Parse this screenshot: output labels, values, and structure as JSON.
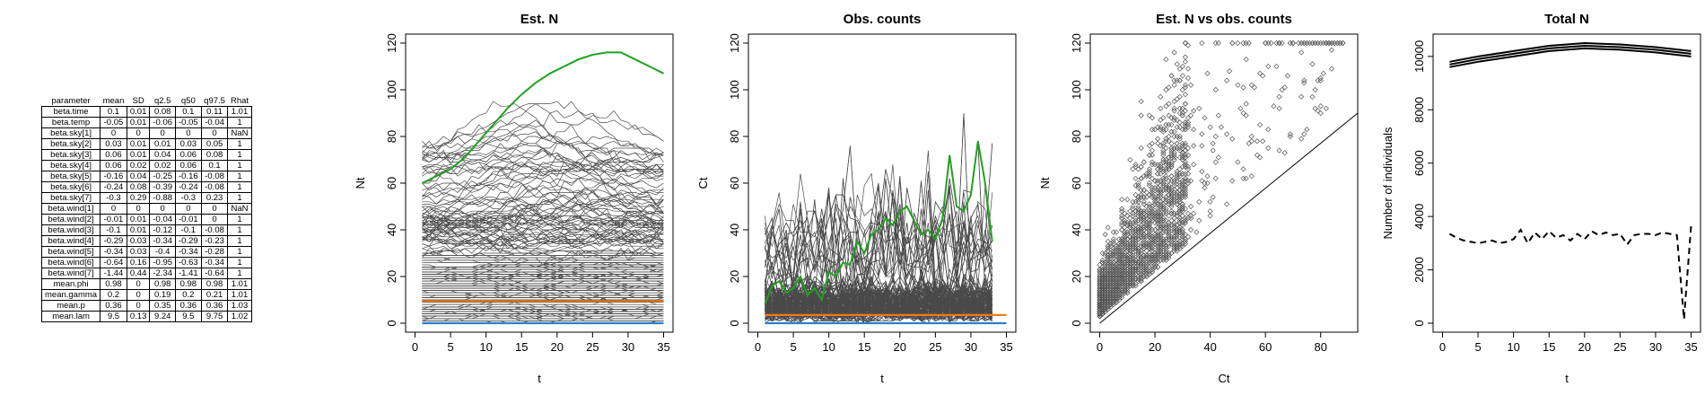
{
  "param_table": {
    "headers": [
      "parameter",
      "mean",
      "SD",
      "q2.5",
      "q50",
      "q97.5",
      "Rhat"
    ],
    "rows": [
      [
        "beta.time",
        "0.1",
        "0.01",
        "0.08",
        "0.1",
        "0.11",
        "1.01"
      ],
      [
        "beta.temp",
        "-0.05",
        "0.01",
        "-0.06",
        "-0.05",
        "-0.04",
        "1"
      ],
      [
        "beta.sky[1]",
        "0",
        "0",
        "0",
        "0",
        "0",
        "NaN"
      ],
      [
        "beta.sky[2]",
        "0.03",
        "0.01",
        "0.01",
        "0.03",
        "0.05",
        "1"
      ],
      [
        "beta.sky[3]",
        "0.06",
        "0.01",
        "0.04",
        "0.06",
        "0.08",
        "1"
      ],
      [
        "beta.sky[4]",
        "0.06",
        "0.02",
        "0.02",
        "0.06",
        "0.1",
        "1"
      ],
      [
        "beta.sky[5]",
        "-0.16",
        "0.04",
        "-0.25",
        "-0.16",
        "-0.08",
        "1"
      ],
      [
        "beta.sky[6]",
        "-0.24",
        "0.08",
        "-0.39",
        "-0.24",
        "-0.08",
        "1"
      ],
      [
        "beta.sky[7]",
        "-0.3",
        "0.29",
        "-0.88",
        "-0.3",
        "0.23",
        "1"
      ],
      [
        "beta.wind[1]",
        "0",
        "0",
        "0",
        "0",
        "0",
        "NaN"
      ],
      [
        "beta.wind[2]",
        "-0.01",
        "0.01",
        "-0.04",
        "-0.01",
        "0",
        "1"
      ],
      [
        "beta.wind[3]",
        "-0.1",
        "0.01",
        "-0.12",
        "-0.1",
        "-0.08",
        "1"
      ],
      [
        "beta.wind[4]",
        "-0.29",
        "0.03",
        "-0.34",
        "-0.29",
        "-0.23",
        "1"
      ],
      [
        "beta.wind[5]",
        "-0.34",
        "0.03",
        "-0.4",
        "-0.34",
        "-0.28",
        "1"
      ],
      [
        "beta.wind[6]",
        "-0.64",
        "0.16",
        "-0.95",
        "-0.63",
        "-0.34",
        "1"
      ],
      [
        "beta.wind[7]",
        "-1.44",
        "0.44",
        "-2.34",
        "-1.41",
        "-0.64",
        "1"
      ],
      [
        "mean.phi",
        "0.98",
        "0",
        "0.98",
        "0.98",
        "0.98",
        "1.01"
      ],
      [
        "mean.gamma",
        "0.2",
        "0",
        "0.19",
        "0.2",
        "0.21",
        "1.01"
      ],
      [
        "mean.p",
        "0.36",
        "0",
        "0.35",
        "0.36",
        "0.36",
        "1.03"
      ],
      [
        "mean.lam",
        "9.5",
        "0.13",
        "9.24",
        "9.5",
        "9.75",
        "1.02"
      ]
    ]
  },
  "colors": {
    "lines": "#4a4a4a",
    "highlight": "#22a022",
    "mean_line": "#f07a10",
    "zero_line": "#2a7fd0",
    "points": "#555555"
  },
  "chart_data": [
    {
      "type": "line",
      "title": "Est. N",
      "xlabel": "t",
      "ylabel": "Nt",
      "xlim": [
        0,
        35
      ],
      "ylim": [
        0,
        120
      ],
      "xticks": [
        0,
        5,
        10,
        15,
        20,
        25,
        30,
        35
      ],
      "yticks": [
        0,
        20,
        40,
        60,
        80,
        100,
        120
      ],
      "n_sites": 260,
      "n_occasions": 35,
      "highlight_series": {
        "name": "example site",
        "x": [
          1,
          3,
          5,
          7,
          9,
          11,
          13,
          15,
          17,
          19,
          21,
          23,
          25,
          27,
          29,
          31,
          33,
          35
        ],
        "values": [
          60,
          63,
          66,
          71,
          78,
          85,
          92,
          98,
          103,
          107,
          110,
          113,
          115,
          116,
          116,
          113,
          110,
          107
        ]
      },
      "mean_value": 9.5,
      "zero_value": 0
    },
    {
      "type": "line",
      "title": "Obs. counts",
      "xlabel": "t",
      "ylabel": "Ct",
      "xlim": [
        0,
        35
      ],
      "ylim": [
        0,
        120
      ],
      "xticks": [
        0,
        5,
        10,
        15,
        20,
        25,
        30,
        35
      ],
      "yticks": [
        0,
        20,
        40,
        60,
        80,
        100,
        120
      ],
      "n_sites": 260,
      "n_occasions": 33,
      "highlight_series": {
        "name": "example site",
        "x": [
          1,
          2,
          3,
          4,
          5,
          6,
          7,
          8,
          9,
          10,
          11,
          12,
          13,
          14,
          15,
          16,
          17,
          18,
          19,
          20,
          21,
          22,
          23,
          24,
          25,
          26,
          27,
          28,
          29,
          30,
          31,
          32,
          33
        ],
        "values": [
          8,
          16,
          18,
          13,
          15,
          20,
          12,
          15,
          10,
          22,
          20,
          26,
          25,
          35,
          30,
          38,
          40,
          45,
          42,
          48,
          50,
          44,
          38,
          40,
          36,
          45,
          72,
          50,
          48,
          55,
          78,
          60,
          35
        ]
      },
      "mean_value": 3.5,
      "zero_value": 0
    },
    {
      "type": "scatter",
      "title": "Est. N vs obs. counts",
      "xlabel": "Ct",
      "ylabel": "Nt",
      "xlim": [
        0,
        90
      ],
      "ylim": [
        0,
        120
      ],
      "xticks": [
        0,
        20,
        40,
        60,
        80
      ],
      "yticks": [
        0,
        20,
        40,
        60,
        80,
        100,
        120
      ],
      "n_points": 2600,
      "reference_line": {
        "intercept": 0,
        "slope": 1
      }
    },
    {
      "type": "line",
      "title": "Total N",
      "xlabel": "t",
      "ylabel": "Number of individuals",
      "xlim": [
        0,
        35
      ],
      "ylim": [
        0,
        10500
      ],
      "xticks": [
        0,
        5,
        10,
        15,
        20,
        25,
        30,
        35
      ],
      "yticks": [
        0,
        2000,
        4000,
        6000,
        8000,
        10000
      ],
      "series": [
        {
          "name": "total N",
          "style": "solid",
          "x": [
            1,
            5,
            10,
            15,
            20,
            25,
            30,
            35
          ],
          "values": [
            9700,
            9900,
            10100,
            10300,
            10400,
            10350,
            10250,
            10100
          ]
        },
        {
          "name": "total N lower",
          "style": "solid",
          "x": [
            1,
            5,
            10,
            15,
            20,
            25,
            30,
            35
          ],
          "values": [
            9600,
            9800,
            10000,
            10200,
            10300,
            10250,
            10150,
            10000
          ]
        },
        {
          "name": "total N upper",
          "style": "solid",
          "x": [
            1,
            5,
            10,
            15,
            20,
            25,
            30,
            35
          ],
          "values": [
            9800,
            10000,
            10200,
            10400,
            10500,
            10450,
            10350,
            10200
          ]
        },
        {
          "name": "total counts",
          "style": "dashed",
          "x": [
            1,
            2,
            3,
            4,
            5,
            6,
            7,
            8,
            9,
            10,
            11,
            12,
            13,
            14,
            15,
            16,
            17,
            18,
            19,
            20,
            21,
            22,
            23,
            24,
            25,
            26,
            27,
            28,
            29,
            30,
            31,
            32,
            33,
            34,
            35
          ],
          "values": [
            3350,
            3200,
            3100,
            3050,
            3000,
            3050,
            3100,
            3000,
            3050,
            3150,
            3500,
            3000,
            3400,
            3150,
            3450,
            3200,
            3300,
            3100,
            3350,
            3150,
            3450,
            3300,
            3400,
            3300,
            3350,
            2950,
            3300,
            3350,
            3350,
            3300,
            3400,
            3350,
            3300,
            150,
            3650
          ]
        }
      ]
    }
  ]
}
